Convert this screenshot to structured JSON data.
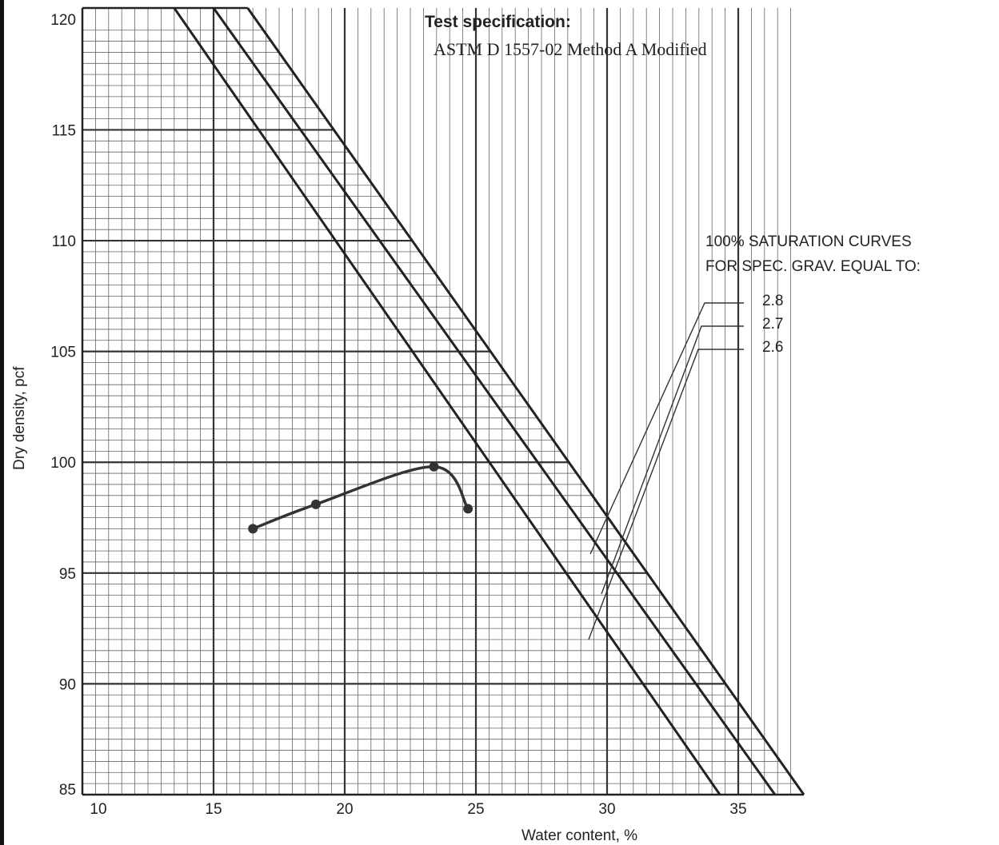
{
  "spec": {
    "title": "Test specification:",
    "value": "ASTM D 1557-02 Method A Modified"
  },
  "legend": {
    "line1": "100% SATURATION CURVES",
    "line2": "FOR SPEC. GRAV. EQUAL TO:",
    "values": [
      "2.8",
      "2.7",
      "2.6"
    ]
  },
  "chart_data": {
    "type": "line",
    "title": "",
    "xlabel": "Water content,  %",
    "ylabel": "Dry density, pcf",
    "xlim": [
      10,
      37.5
    ],
    "ylim": [
      85,
      120.5
    ],
    "xticks": [
      "10",
      "15",
      "20",
      "25",
      "30",
      "35"
    ],
    "yticks": [
      "85",
      "90",
      "95",
      "100",
      "105",
      "110",
      "115",
      "120"
    ],
    "grid": true,
    "series": [
      {
        "points": [
          {
            "x": 16.5,
            "y": 97.0
          },
          {
            "x": 18.9,
            "y": 98.1
          },
          {
            "x": 23.4,
            "y": 99.8
          },
          {
            "x": 24.7,
            "y": 97.9
          }
        ],
        "color": "#333333"
      }
    ],
    "saturation_curves": [
      {
        "gs": "2.8",
        "x": [
          13.5,
          34.3
        ],
        "y": [
          120.5,
          85
        ]
      },
      {
        "gs": "2.7",
        "x": [
          15.0,
          36.4
        ],
        "y": [
          120.5,
          85
        ]
      },
      {
        "gs": "2.6",
        "x": [
          16.3,
          37.5
        ],
        "y": [
          120.5,
          85
        ]
      }
    ]
  }
}
